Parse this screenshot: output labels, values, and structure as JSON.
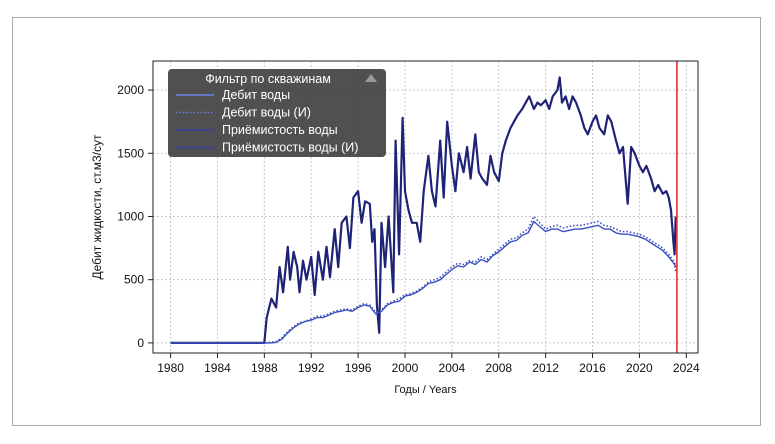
{
  "chart_data": {
    "type": "line",
    "title": "",
    "xlabel": "Годы / Years",
    "ylabel": "Дебит жидкости, ст.м3/сут",
    "xlim": [
      1978.5,
      2025.0
    ],
    "ylim": [
      -80,
      2230
    ],
    "x_ticks": [
      1980,
      1984,
      1988,
      1992,
      1996,
      2000,
      2004,
      2008,
      2012,
      2016,
      2020,
      2024
    ],
    "x_tick_labels": [
      "1980",
      "1984",
      "1988",
      "1992",
      "1996",
      "2000",
      "2004",
      "2008",
      "2012",
      "2016",
      "2020",
      "2024"
    ],
    "y_ticks": [
      0,
      500,
      1000,
      1500,
      2000
    ],
    "y_tick_labels": [
      "0",
      "500",
      "1000",
      "1500",
      "2000"
    ],
    "grid": true,
    "vertical_marker": {
      "x": 2023.2,
      "color": "#e03030"
    },
    "legend": {
      "title": "Фильтр по скважинам",
      "position": "top-left",
      "entries": [
        {
          "label": "Дебит воды",
          "style": "solid",
          "color": "#3c4fbf"
        },
        {
          "label": "Дебит воды (И)",
          "style": "dotted",
          "color": "#3c4fbf"
        },
        {
          "label": "Приёмистость воды",
          "style": "solid",
          "color": "#1f2377"
        },
        {
          "label": "Приёмистость воды (И)",
          "style": "solid",
          "color": "#1f2377"
        }
      ]
    },
    "series": [
      {
        "name": "Приёмистость воды",
        "style": "solid",
        "color": "#1f2377",
        "width": 2.2,
        "x": [
          1980,
          1988,
          1988.2,
          1988.6,
          1989,
          1989.3,
          1989.6,
          1990,
          1990.2,
          1990.5,
          1990.8,
          1991,
          1991.3,
          1991.6,
          1992,
          1992.3,
          1992.6,
          1993,
          1993.3,
          1993.6,
          1994,
          1994.3,
          1994.6,
          1995,
          1995.3,
          1995.6,
          1996,
          1996.3,
          1996.6,
          1997,
          1997.2,
          1997.4,
          1997.6,
          1997.8,
          1998,
          1998.3,
          1998.6,
          1999,
          1999.2,
          1999.5,
          1999.8,
          2000,
          2000.3,
          2000.6,
          2001,
          2001.3,
          2001.6,
          2002,
          2002.3,
          2002.6,
          2003,
          2003.3,
          2003.6,
          2004,
          2004.3,
          2004.6,
          2005,
          2005.3,
          2005.6,
          2006,
          2006.3,
          2006.6,
          2007,
          2007.3,
          2007.6,
          2008,
          2008.3,
          2008.6,
          2009,
          2009.3,
          2009.6,
          2010,
          2010.3,
          2010.6,
          2011,
          2011.3,
          2011.6,
          2012,
          2012.3,
          2012.6,
          2013,
          2013.2,
          2013.4,
          2013.7,
          2014,
          2014.3,
          2014.6,
          2015,
          2015.3,
          2015.6,
          2016,
          2016.3,
          2016.6,
          2017,
          2017.3,
          2017.6,
          2018,
          2018.3,
          2018.6,
          2019,
          2019.3,
          2019.6,
          2020,
          2020.3,
          2020.6,
          2021,
          2021.3,
          2021.6,
          2022,
          2022.3,
          2022.5,
          2022.7,
          2022.9,
          2023.0,
          2023.1
        ],
        "values": [
          0,
          0,
          200,
          350,
          280,
          600,
          400,
          760,
          500,
          720,
          600,
          400,
          650,
          500,
          680,
          380,
          720,
          500,
          760,
          520,
          900,
          600,
          950,
          1000,
          750,
          1150,
          1200,
          950,
          1120,
          1100,
          800,
          900,
          300,
          80,
          950,
          600,
          1000,
          400,
          1600,
          700,
          1780,
          1200,
          1050,
          950,
          950,
          800,
          1200,
          1480,
          1200,
          1080,
          1600,
          1150,
          1750,
          1400,
          1200,
          1500,
          1350,
          1550,
          1300,
          1650,
          1350,
          1300,
          1250,
          1480,
          1350,
          1280,
          1500,
          1600,
          1700,
          1750,
          1800,
          1850,
          1900,
          1950,
          1850,
          1900,
          1880,
          1920,
          1850,
          1950,
          2000,
          2100,
          1900,
          1950,
          1850,
          1950,
          1900,
          1800,
          1700,
          1650,
          1750,
          1800,
          1700,
          1650,
          1800,
          1750,
          1600,
          1500,
          1550,
          1100,
          1550,
          1500,
          1400,
          1350,
          1400,
          1300,
          1200,
          1250,
          1180,
          1200,
          1150,
          1050,
          800,
          700,
          1000
        ]
      },
      {
        "name": "Дебит воды",
        "style": "solid",
        "color": "#3c4fbf",
        "width": 1.4,
        "x": [
          1980,
          1988,
          1988.6,
          1989,
          1989.5,
          1990,
          1990.5,
          1991,
          1991.5,
          1992,
          1992.5,
          1993,
          1993.5,
          1994,
          1994.5,
          1995,
          1995.5,
          1996,
          1996.5,
          1997,
          1997.5,
          1998,
          1998.5,
          1999,
          1999.5,
          2000,
          2000.5,
          2001,
          2001.5,
          2002,
          2002.5,
          2003,
          2003.5,
          2004,
          2004.5,
          2005,
          2005.5,
          2006,
          2006.5,
          2007,
          2007.5,
          2008,
          2008.5,
          2009,
          2009.5,
          2010,
          2010.5,
          2011,
          2011.5,
          2012,
          2012.5,
          2013,
          2013.5,
          2014,
          2014.5,
          2015,
          2015.5,
          2016,
          2016.5,
          2017,
          2017.5,
          2018,
          2018.5,
          2019,
          2019.5,
          2020,
          2020.5,
          2021,
          2021.5,
          2022,
          2022.5,
          2023,
          2023.1
        ],
        "values": [
          0,
          0,
          0,
          5,
          30,
          80,
          120,
          150,
          170,
          180,
          200,
          200,
          220,
          240,
          250,
          260,
          250,
          280,
          300,
          290,
          230,
          250,
          300,
          320,
          330,
          370,
          380,
          400,
          430,
          470,
          480,
          500,
          540,
          580,
          610,
          600,
          640,
          620,
          660,
          640,
          690,
          720,
          760,
          800,
          810,
          850,
          870,
          960,
          920,
          880,
          900,
          900,
          880,
          890,
          900,
          900,
          910,
          920,
          930,
          900,
          900,
          870,
          860,
          860,
          850,
          840,
          820,
          790,
          760,
          730,
          680,
          620,
          600
        ]
      },
      {
        "name": "Дебит воды (И)",
        "style": "dotted",
        "color": "#3c4fbf",
        "width": 1.6,
        "x": [
          1980,
          1988,
          1989,
          1989.5,
          1990,
          1990.5,
          1991,
          1991.5,
          1992,
          1992.5,
          1993,
          1993.5,
          1994,
          1994.5,
          1995,
          1995.5,
          1996,
          1996.5,
          1997,
          1997.5,
          1998,
          1998.5,
          1999,
          1999.5,
          2000,
          2000.5,
          2001,
          2001.5,
          2002,
          2002.5,
          2003,
          2003.5,
          2004,
          2004.5,
          2005,
          2005.5,
          2006,
          2006.5,
          2007,
          2007.5,
          2008,
          2008.5,
          2009,
          2009.5,
          2010,
          2010.5,
          2011,
          2011.5,
          2012,
          2012.5,
          2013,
          2013.5,
          2014,
          2014.5,
          2015,
          2015.5,
          2016,
          2016.5,
          2017,
          2017.5,
          2018,
          2018.5,
          2019,
          2019.5,
          2020,
          2020.5,
          2021,
          2021.5,
          2022,
          2022.5,
          2023,
          2023.1
        ],
        "values": [
          0,
          0,
          10,
          40,
          90,
          130,
          160,
          170,
          190,
          210,
          210,
          230,
          250,
          260,
          270,
          260,
          290,
          310,
          300,
          240,
          260,
          310,
          330,
          350,
          380,
          390,
          410,
          440,
          480,
          500,
          520,
          560,
          600,
          630,
          620,
          650,
          640,
          680,
          660,
          700,
          740,
          780,
          820,
          830,
          870,
          900,
          1000,
          950,
          900,
          920,
          930,
          910,
          920,
          930,
          930,
          940,
          950,
          960,
          930,
          920,
          900,
          880,
          880,
          870,
          860,
          840,
          810,
          780,
          750,
          700,
          640,
          560
        ]
      }
    ]
  }
}
